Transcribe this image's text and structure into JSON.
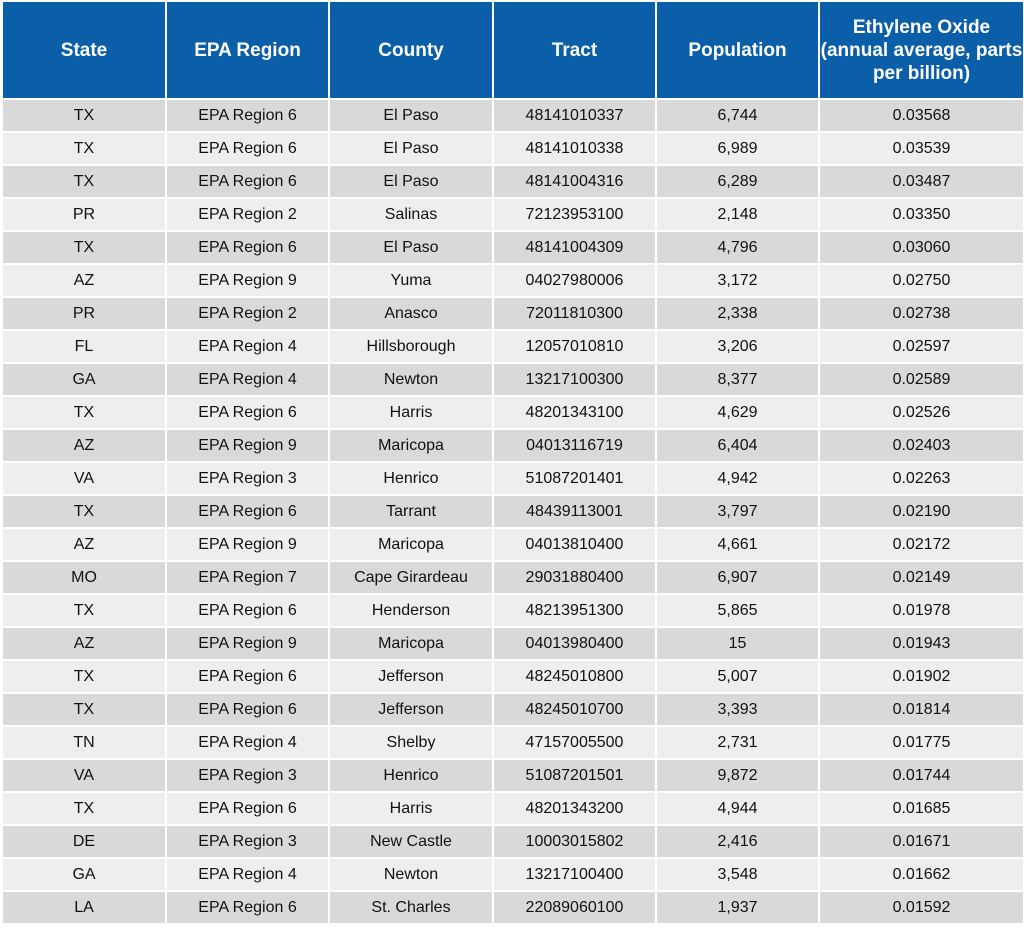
{
  "table": {
    "header": [
      "State",
      "EPA Region",
      "County",
      "Tract",
      "Population",
      "Ethylene Oxide (annual average, parts per billion)"
    ],
    "rows": [
      [
        "TX",
        "EPA Region 6",
        "El Paso",
        "48141010337",
        "6,744",
        "0.03568"
      ],
      [
        "TX",
        "EPA Region 6",
        "El Paso",
        "48141010338",
        "6,989",
        "0.03539"
      ],
      [
        "TX",
        "EPA Region 6",
        "El Paso",
        "48141004316",
        "6,289",
        "0.03487"
      ],
      [
        "PR",
        "EPA Region 2",
        "Salinas",
        "72123953100",
        "2,148",
        "0.03350"
      ],
      [
        "TX",
        "EPA Region 6",
        "El Paso",
        "48141004309",
        "4,796",
        "0.03060"
      ],
      [
        "AZ",
        "EPA Region 9",
        "Yuma",
        "04027980006",
        "3,172",
        "0.02750"
      ],
      [
        "PR",
        "EPA Region 2",
        "Anasco",
        "72011810300",
        "2,338",
        "0.02738"
      ],
      [
        "FL",
        "EPA Region 4",
        "Hillsborough",
        "12057010810",
        "3,206",
        "0.02597"
      ],
      [
        "GA",
        "EPA Region 4",
        "Newton",
        "13217100300",
        "8,377",
        "0.02589"
      ],
      [
        "TX",
        "EPA Region 6",
        "Harris",
        "48201343100",
        "4,629",
        "0.02526"
      ],
      [
        "AZ",
        "EPA Region 9",
        "Maricopa",
        "04013116719",
        "6,404",
        "0.02403"
      ],
      [
        "VA",
        "EPA Region 3",
        "Henrico",
        "51087201401",
        "4,942",
        "0.02263"
      ],
      [
        "TX",
        "EPA Region 6",
        "Tarrant",
        "48439113001",
        "3,797",
        "0.02190"
      ],
      [
        "AZ",
        "EPA Region 9",
        "Maricopa",
        "04013810400",
        "4,661",
        "0.02172"
      ],
      [
        "MO",
        "EPA Region 7",
        "Cape Girardeau",
        "29031880400",
        "6,907",
        "0.02149"
      ],
      [
        "TX",
        "EPA Region 6",
        "Henderson",
        "48213951300",
        "5,865",
        "0.01978"
      ],
      [
        "AZ",
        "EPA Region 9",
        "Maricopa",
        "04013980400",
        "15",
        "0.01943"
      ],
      [
        "TX",
        "EPA Region 6",
        "Jefferson",
        "48245010800",
        "5,007",
        "0.01902"
      ],
      [
        "TX",
        "EPA Region 6",
        "Jefferson",
        "48245010700",
        "3,393",
        "0.01814"
      ],
      [
        "TN",
        "EPA Region 4",
        "Shelby",
        "47157005500",
        "2,731",
        "0.01775"
      ],
      [
        "VA",
        "EPA Region 3",
        "Henrico",
        "51087201501",
        "9,872",
        "0.01744"
      ],
      [
        "TX",
        "EPA Region 6",
        "Harris",
        "48201343200",
        "4,944",
        "0.01685"
      ],
      [
        "DE",
        "EPA Region 3",
        "New Castle",
        "10003015802",
        "2,416",
        "0.01671"
      ],
      [
        "GA",
        "EPA Region 4",
        "Newton",
        "13217100400",
        "3,548",
        "0.01662"
      ],
      [
        "LA",
        "EPA Region 6",
        "St. Charles",
        "22089060100",
        "1,937",
        "0.01592"
      ]
    ]
  }
}
